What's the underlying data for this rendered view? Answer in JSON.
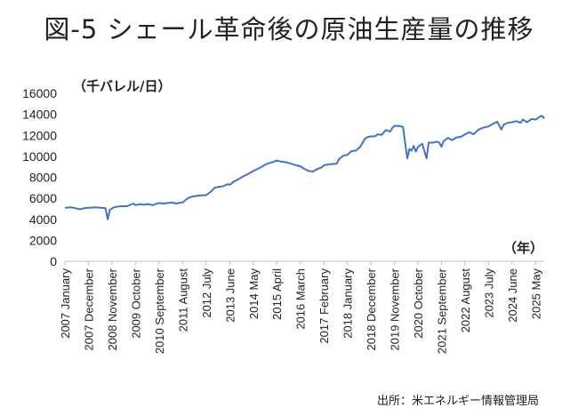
{
  "title": "図-5 シェール革命後の原油生産量の推移",
  "unit_label": "（千バレル/日）",
  "x_unit_label": "（年）",
  "source": "出所：米エネルギー情報管理局",
  "chart_data": {
    "type": "line",
    "title": "図-5 シェール革命後の原油生産量の推移",
    "ylabel": "（千バレル/日）",
    "xlabel": "（年）",
    "ylim": [
      0,
      16000
    ],
    "yticks": [
      0,
      2000,
      4000,
      6000,
      8000,
      10000,
      12000,
      14000,
      16000
    ],
    "ytick_labels": [
      "0",
      "2000",
      "4000",
      "6000",
      "8000",
      "10000",
      "12000",
      "14000",
      "16000"
    ],
    "grid": false,
    "legend": "none",
    "line_color": "#4472c4",
    "xlim": [
      "2007-01",
      "2025-09"
    ],
    "x_tick_labels": [
      {
        "date": "2007-01",
        "label": "2007 January"
      },
      {
        "date": "2007-12",
        "label": "2007 December"
      },
      {
        "date": "2008-11",
        "label": "2008 November"
      },
      {
        "date": "2009-10",
        "label": "2009 October"
      },
      {
        "date": "2010-09",
        "label": "2010 September"
      },
      {
        "date": "2011-08",
        "label": "2011 August"
      },
      {
        "date": "2012-07",
        "label": "2012 July"
      },
      {
        "date": "2013-06",
        "label": "2013 June"
      },
      {
        "date": "2014-05",
        "label": "2014 May"
      },
      {
        "date": "2015-04",
        "label": "2015 April"
      },
      {
        "date": "2016-03",
        "label": "2016 March"
      },
      {
        "date": "2017-02",
        "label": "2017 February"
      },
      {
        "date": "2018-01",
        "label": "2018 January"
      },
      {
        "date": "2018-12",
        "label": "2018 December"
      },
      {
        "date": "2019-11",
        "label": "2019 November"
      },
      {
        "date": "2020-10",
        "label": "2020 October"
      },
      {
        "date": "2021-09",
        "label": "2021 September"
      },
      {
        "date": "2022-08",
        "label": "2022 August"
      },
      {
        "date": "2023-07",
        "label": "2023 July"
      },
      {
        "date": "2024-06",
        "label": "2024 June"
      },
      {
        "date": "2025-05",
        "label": "2025 May"
      }
    ],
    "series": [
      {
        "points": [
          [
            "2007-01",
            5100
          ],
          [
            "2007-04",
            5150
          ],
          [
            "2007-06",
            5050
          ],
          [
            "2007-08",
            4950
          ],
          [
            "2007-10",
            5050
          ],
          [
            "2007-12",
            5100
          ],
          [
            "2008-03",
            5150
          ],
          [
            "2008-06",
            5100
          ],
          [
            "2008-08",
            5050
          ],
          [
            "2008-09",
            4000
          ],
          [
            "2008-10",
            4900
          ],
          [
            "2008-12",
            5150
          ],
          [
            "2009-03",
            5250
          ],
          [
            "2009-06",
            5250
          ],
          [
            "2009-09",
            5500
          ],
          [
            "2009-10",
            5350
          ],
          [
            "2009-12",
            5450
          ],
          [
            "2010-02",
            5400
          ],
          [
            "2010-04",
            5450
          ],
          [
            "2010-06",
            5350
          ],
          [
            "2010-08",
            5500
          ],
          [
            "2010-09",
            5550
          ],
          [
            "2010-11",
            5500
          ],
          [
            "2011-01",
            5550
          ],
          [
            "2011-03",
            5600
          ],
          [
            "2011-05",
            5500
          ],
          [
            "2011-07",
            5600
          ],
          [
            "2011-08",
            5600
          ],
          [
            "2011-10",
            5950
          ],
          [
            "2011-12",
            6150
          ],
          [
            "2012-03",
            6250
          ],
          [
            "2012-05",
            6300
          ],
          [
            "2012-07",
            6300
          ],
          [
            "2012-09",
            6600
          ],
          [
            "2012-11",
            7000
          ],
          [
            "2013-01",
            7100
          ],
          [
            "2013-03",
            7150
          ],
          [
            "2013-05",
            7350
          ],
          [
            "2013-06",
            7300
          ],
          [
            "2013-08",
            7600
          ],
          [
            "2013-10",
            7800
          ],
          [
            "2013-12",
            8050
          ],
          [
            "2014-02",
            8250
          ],
          [
            "2014-05",
            8600
          ],
          [
            "2014-08",
            8900
          ],
          [
            "2014-11",
            9250
          ],
          [
            "2015-02",
            9450
          ],
          [
            "2015-04",
            9600
          ],
          [
            "2015-06",
            9500
          ],
          [
            "2015-08",
            9450
          ],
          [
            "2015-10",
            9350
          ],
          [
            "2016-01",
            9150
          ],
          [
            "2016-03",
            9050
          ],
          [
            "2016-05",
            8800
          ],
          [
            "2016-07",
            8600
          ],
          [
            "2016-09",
            8550
          ],
          [
            "2016-11",
            8800
          ],
          [
            "2017-01",
            8950
          ],
          [
            "2017-02",
            9150
          ],
          [
            "2017-05",
            9250
          ],
          [
            "2017-08",
            9300
          ],
          [
            "2017-09",
            9700
          ],
          [
            "2017-11",
            10050
          ],
          [
            "2018-01",
            10150
          ],
          [
            "2018-03",
            10500
          ],
          [
            "2018-05",
            10550
          ],
          [
            "2018-07",
            10900
          ],
          [
            "2018-09",
            11600
          ],
          [
            "2018-10",
            11800
          ],
          [
            "2018-12",
            11900
          ],
          [
            "2019-02",
            11900
          ],
          [
            "2019-03",
            12100
          ],
          [
            "2019-05",
            12050
          ],
          [
            "2019-07",
            12500
          ],
          [
            "2019-09",
            12350
          ],
          [
            "2019-10",
            12700
          ],
          [
            "2019-11",
            12900
          ],
          [
            "2020-01",
            12900
          ],
          [
            "2020-03",
            12800
          ],
          [
            "2020-05",
            9800
          ],
          [
            "2020-06",
            10700
          ],
          [
            "2020-07",
            10550
          ],
          [
            "2020-08",
            11000
          ],
          [
            "2020-09",
            10450
          ],
          [
            "2020-10",
            10900
          ],
          [
            "2020-11",
            11050
          ],
          [
            "2020-12",
            11200
          ],
          [
            "2021-02",
            9800
          ],
          [
            "2021-03",
            11300
          ],
          [
            "2021-05",
            11300
          ],
          [
            "2021-07",
            11400
          ],
          [
            "2021-08",
            11300
          ],
          [
            "2021-09",
            10900
          ],
          [
            "2021-10",
            11450
          ],
          [
            "2021-12",
            11750
          ],
          [
            "2022-02",
            11550
          ],
          [
            "2022-04",
            11800
          ],
          [
            "2022-06",
            11850
          ],
          [
            "2022-08",
            12100
          ],
          [
            "2022-10",
            12300
          ],
          [
            "2022-12",
            12100
          ],
          [
            "2023-02",
            12500
          ],
          [
            "2023-04",
            12700
          ],
          [
            "2023-06",
            12800
          ],
          [
            "2023-07",
            12850
          ],
          [
            "2023-09",
            13100
          ],
          [
            "2023-11",
            13300
          ],
          [
            "2024-01",
            12550
          ],
          [
            "2024-02",
            13000
          ],
          [
            "2024-04",
            13200
          ],
          [
            "2024-06",
            13250
          ],
          [
            "2024-08",
            13350
          ],
          [
            "2024-10",
            13200
          ],
          [
            "2024-11",
            13500
          ],
          [
            "2025-01",
            13250
          ],
          [
            "2025-03",
            13550
          ],
          [
            "2025-05",
            13500
          ],
          [
            "2025-07",
            13800
          ],
          [
            "2025-08",
            13850
          ],
          [
            "2025-09",
            13600
          ]
        ]
      }
    ]
  }
}
